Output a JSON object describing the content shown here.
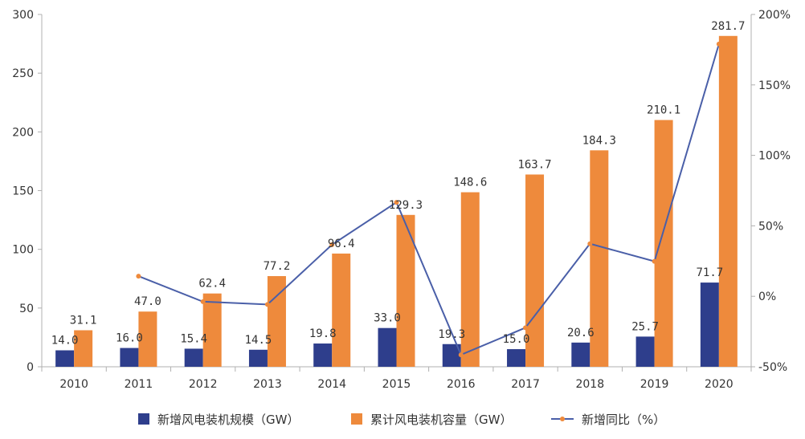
{
  "chart_data": {
    "type": "bar",
    "categories": [
      "2010",
      "2011",
      "2012",
      "2013",
      "2014",
      "2015",
      "2016",
      "2017",
      "2018",
      "2019",
      "2020"
    ],
    "series": [
      {
        "name": "新增风电装机规模（GW）",
        "type": "bar",
        "axis": "left",
        "color": "#2E3E8C",
        "values": [
          14.0,
          16.0,
          15.4,
          14.5,
          19.8,
          33.0,
          19.3,
          15.0,
          20.6,
          25.7,
          71.7
        ],
        "labels": [
          "14.0",
          "16.0",
          "15.4",
          "14.5",
          "19.8",
          "33.0",
          "19.3",
          "15.0",
          "20.6",
          "25.7",
          "71.7"
        ]
      },
      {
        "name": "累计风电装机容量（GW）",
        "type": "bar",
        "axis": "left",
        "color": "#EE8A3C",
        "values": [
          31.1,
          47.0,
          62.4,
          77.2,
          96.4,
          129.3,
          148.6,
          163.7,
          184.3,
          210.1,
          281.7
        ],
        "labels": [
          "31.1",
          "47.0",
          "62.4",
          "77.2",
          "96.4",
          "129.3",
          "148.6",
          "163.7",
          "184.3",
          "210.1",
          "281.7"
        ]
      },
      {
        "name": "新增同比（%）",
        "type": "line",
        "axis": "right",
        "color": "#4A5FA8",
        "marker_color": "#EE8A3C",
        "values": [
          null,
          14.3,
          -3.8,
          -5.8,
          36.6,
          66.7,
          -41.5,
          -22.3,
          37.3,
          24.8,
          179.0
        ]
      }
    ],
    "left_axis": {
      "ylim": [
        0,
        300
      ],
      "ticks": [
        "0",
        "50",
        "100",
        "150",
        "200",
        "250",
        "300"
      ]
    },
    "right_axis": {
      "ylim": [
        -50,
        200
      ],
      "ticks": [
        "-50%",
        "0%",
        "50%",
        "100%",
        "150%",
        "200%"
      ]
    },
    "grid": false,
    "legend": "bottom"
  }
}
